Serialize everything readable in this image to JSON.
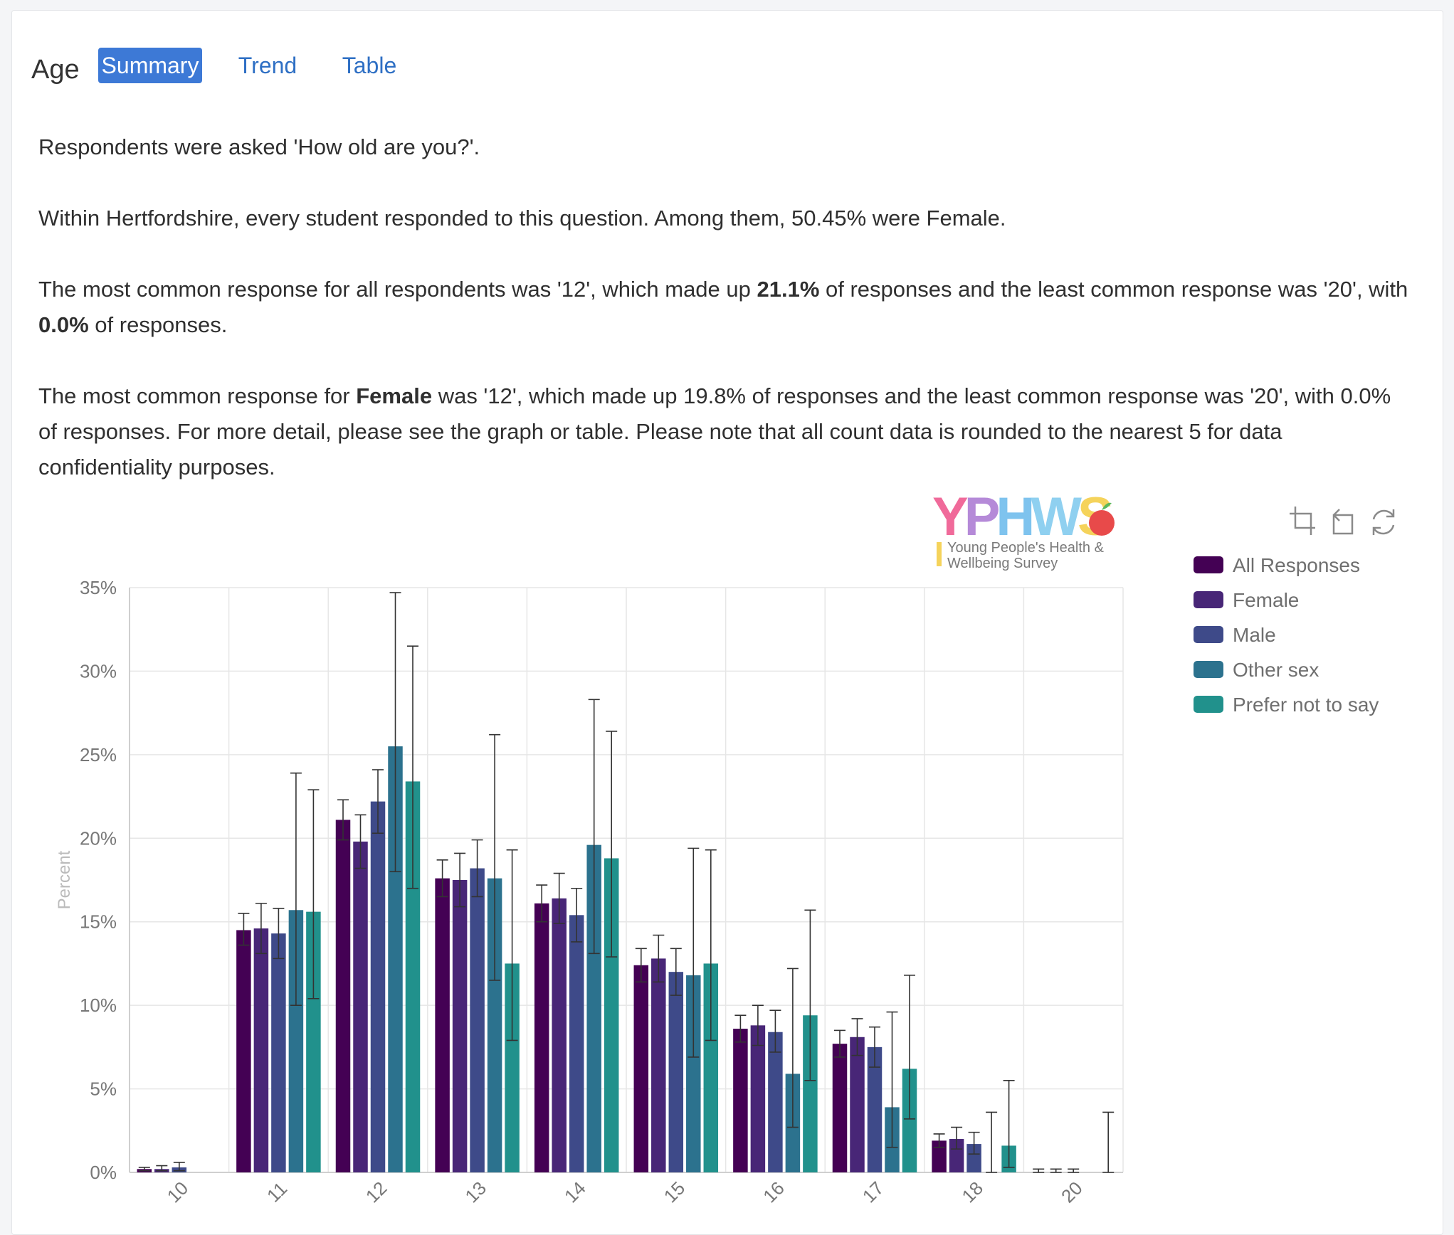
{
  "header": {
    "title": "Age",
    "tabs": [
      {
        "label": "Summary",
        "active": true
      },
      {
        "label": "Trend",
        "active": false
      },
      {
        "label": "Table",
        "active": false
      }
    ]
  },
  "description": {
    "p1": "Respondents were asked 'How old are you?'.",
    "p2": "Within Hertfordshire, every student responded to this question. Among them, 50.45% were Female.",
    "p3_a": "The most common response for all respondents was '12', which made up ",
    "p3_b": "21.1%",
    "p3_c": " of responses and the least common response was '20', with ",
    "p3_d": "0.0%",
    "p3_e": " of responses.",
    "p4_a": "The most common response for ",
    "p4_b": "Female",
    "p4_c": " was '12', which made up 19.8% of responses and the least common response was '20', with 0.0% of responses. For more detail, please see the graph or table. Please note that all count data is rounded to the nearest 5 for data confidentiality purposes."
  },
  "logo": {
    "text": "YPHWS",
    "subtitle_line1": "Young People's Health &",
    "subtitle_line2": "Wellbeing Survey"
  },
  "toolbar": {
    "icons": [
      "zoom-select-icon",
      "zoom-reset-icon",
      "restore-icon"
    ]
  },
  "chart_data": {
    "type": "bar",
    "title": "",
    "xlabel": "",
    "ylabel": "Percent",
    "ylim": [
      0,
      35
    ],
    "yticks": [
      "0%",
      "5%",
      "10%",
      "15%",
      "20%",
      "25%",
      "30%",
      "35%"
    ],
    "categories": [
      "10",
      "11",
      "12",
      "13",
      "14",
      "15",
      "16",
      "17",
      "18",
      "20"
    ],
    "legend_position": "right",
    "grid": true,
    "series": [
      {
        "name": "All Responses",
        "color": "#440154",
        "values": [
          0.2,
          14.5,
          21.1,
          17.6,
          16.1,
          12.4,
          8.6,
          7.7,
          1.9,
          0.0
        ],
        "err_low": [
          0.1,
          13.6,
          19.9,
          16.5,
          15.0,
          11.4,
          7.8,
          6.9,
          1.5,
          0.0
        ],
        "err_high": [
          0.3,
          15.5,
          22.3,
          18.7,
          17.2,
          13.4,
          9.4,
          8.5,
          2.3,
          0.2
        ]
      },
      {
        "name": "Female",
        "color": "#482677",
        "values": [
          0.2,
          14.6,
          19.8,
          17.5,
          16.4,
          12.8,
          8.8,
          8.1,
          2.0,
          0.0
        ],
        "err_low": [
          0.1,
          13.1,
          18.2,
          15.9,
          14.9,
          11.4,
          7.6,
          7.0,
          1.4,
          0.0
        ],
        "err_high": [
          0.4,
          16.1,
          21.4,
          19.1,
          17.9,
          14.2,
          10.0,
          9.2,
          2.7,
          0.2
        ]
      },
      {
        "name": "Male",
        "color": "#3e4a89",
        "values": [
          0.3,
          14.3,
          22.2,
          18.2,
          15.4,
          12.0,
          8.4,
          7.5,
          1.7,
          0.0
        ],
        "err_low": [
          0.1,
          12.8,
          20.3,
          16.5,
          13.8,
          10.6,
          7.2,
          6.3,
          1.1,
          0.0
        ],
        "err_high": [
          0.6,
          15.8,
          24.1,
          19.9,
          17.0,
          13.4,
          9.7,
          8.7,
          2.4,
          0.2
        ]
      },
      {
        "name": "Other sex",
        "color": "#2c728e",
        "values": [
          0.0,
          15.7,
          25.5,
          17.6,
          19.6,
          11.8,
          5.9,
          3.9,
          0.0,
          0.0
        ],
        "err_low": [
          0.0,
          10.0,
          18.0,
          11.5,
          13.1,
          6.9,
          2.7,
          1.5,
          0.0,
          0.0
        ],
        "err_high": [
          0.0,
          23.9,
          34.7,
          26.2,
          28.3,
          19.4,
          12.2,
          9.6,
          3.6,
          0.0
        ]
      },
      {
        "name": "Prefer not to say",
        "color": "#21918c",
        "values": [
          0.0,
          15.6,
          23.4,
          12.5,
          18.8,
          12.5,
          9.4,
          6.2,
          1.6,
          0.0
        ],
        "err_low": [
          0.0,
          10.4,
          17.0,
          7.9,
          12.9,
          7.9,
          5.5,
          3.2,
          0.3,
          0.0
        ],
        "err_high": [
          0.0,
          22.9,
          31.5,
          19.3,
          26.4,
          19.3,
          15.7,
          11.8,
          5.5,
          3.6
        ]
      }
    ]
  }
}
